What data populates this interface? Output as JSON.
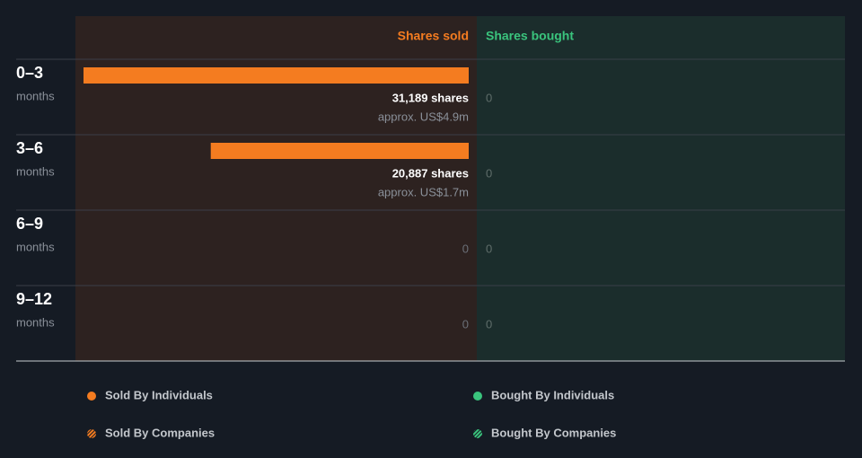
{
  "chart_data": {
    "type": "bar",
    "sold_header": "Shares sold",
    "bought_header": "Shares bought",
    "sold_color": "#f47c20",
    "bought_color": "#3ac47d",
    "categories": [
      "0–3",
      "3–6",
      "6–9",
      "9–12"
    ],
    "category_unit": "months",
    "xlim": [
      0,
      31189
    ],
    "series": [
      {
        "name": "Sold By Individuals",
        "side": "sold",
        "color": "#f47c20",
        "pattern": "solid",
        "values": [
          31189,
          20887,
          0,
          0
        ],
        "value_labels": [
          "31,189 shares",
          "20,887 shares",
          null,
          null
        ],
        "usd_values": [
          4900000,
          1700000,
          null,
          null
        ],
        "usd_labels": [
          "approx. US$4.9m",
          "approx. US$1.7m",
          null,
          null
        ]
      },
      {
        "name": "Sold By Companies",
        "side": "sold",
        "color": "#f47c20",
        "pattern": "striped",
        "values": [
          0,
          0,
          0,
          0
        ]
      },
      {
        "name": "Bought By Individuals",
        "side": "bought",
        "color": "#3ac47d",
        "pattern": "solid",
        "values": [
          0,
          0,
          0,
          0
        ]
      },
      {
        "name": "Bought By Companies",
        "side": "bought",
        "color": "#3ac47d",
        "pattern": "striped",
        "values": [
          0,
          0,
          0,
          0
        ]
      }
    ]
  }
}
